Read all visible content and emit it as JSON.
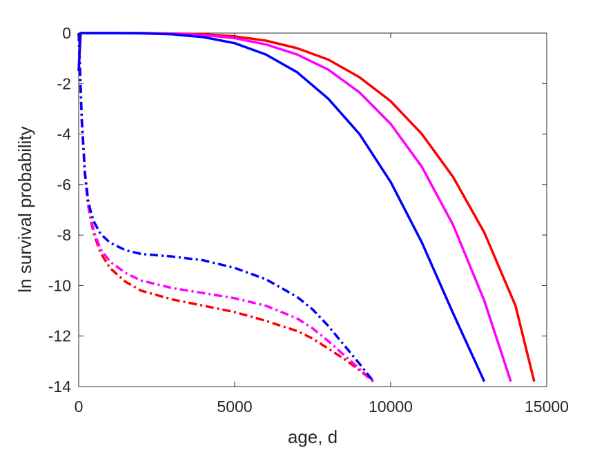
{
  "chart_data": {
    "type": "line",
    "title": "",
    "xlabel": "age, d",
    "ylabel": "ln survival probability",
    "xlim": [
      0,
      15000
    ],
    "ylim": [
      -14,
      0
    ],
    "xticks": [
      0,
      5000,
      10000,
      15000
    ],
    "xtick_labels": [
      "0",
      "5000",
      "10000",
      "15000"
    ],
    "yticks": [
      0,
      -2,
      -4,
      -6,
      -8,
      -10,
      -12,
      -14
    ],
    "ytick_labels": [
      "0",
      "-2",
      "-4",
      "-6",
      "-8",
      "-10",
      "-12",
      "-14"
    ],
    "grid": false,
    "legend": "none",
    "series": [
      {
        "color": "#ff0000",
        "style": "solid",
        "x": [
          0,
          60,
          1000,
          2000,
          3000,
          4000,
          5000,
          6000,
          7000,
          8000,
          9000,
          10000,
          11000,
          12000,
          13000,
          14000,
          14600
        ],
        "y": [
          -1.5,
          0,
          0,
          0,
          -0.02,
          -0.05,
          -0.13,
          -0.3,
          -0.6,
          -1.05,
          -1.75,
          -2.7,
          -4.0,
          -5.7,
          -7.9,
          -10.8,
          -13.8
        ]
      },
      {
        "color": "#ff00ff",
        "style": "solid",
        "x": [
          0,
          60,
          1000,
          2000,
          3000,
          4000,
          5000,
          6000,
          7000,
          8000,
          9000,
          10000,
          11000,
          12000,
          13000,
          13850
        ],
        "y": [
          -1.5,
          0,
          0,
          0,
          -0.03,
          -0.08,
          -0.2,
          -0.45,
          -0.85,
          -1.45,
          -2.35,
          -3.6,
          -5.3,
          -7.6,
          -10.6,
          -13.8
        ]
      },
      {
        "color": "#0000ff",
        "style": "solid",
        "x": [
          0,
          60,
          1000,
          2000,
          3000,
          4000,
          5000,
          6000,
          7000,
          8000,
          9000,
          10000,
          11000,
          12000,
          13000
        ],
        "y": [
          -1.5,
          0,
          0,
          -0.01,
          -0.05,
          -0.16,
          -0.4,
          -0.85,
          -1.55,
          -2.6,
          -4.0,
          -5.9,
          -8.3,
          -11.1,
          -13.8
        ]
      },
      {
        "color": "#ff0000",
        "style": "dashdot",
        "x": [
          0,
          100,
          200,
          300,
          400,
          500,
          700,
          1000,
          1500,
          2000,
          3000,
          4000,
          5000,
          6000,
          7000,
          7500,
          8000,
          8500,
          9000,
          9450
        ],
        "y": [
          0,
          -3.5,
          -5.6,
          -6.8,
          -7.5,
          -8.0,
          -8.7,
          -9.3,
          -9.85,
          -10.2,
          -10.55,
          -10.8,
          -11.05,
          -11.4,
          -11.8,
          -12.1,
          -12.5,
          -12.9,
          -13.35,
          -13.8
        ]
      },
      {
        "color": "#ff00ff",
        "style": "dashdot",
        "x": [
          0,
          100,
          200,
          300,
          400,
          500,
          700,
          1000,
          1500,
          2000,
          3000,
          4000,
          5000,
          6000,
          7000,
          7500,
          8000,
          8500,
          9000,
          9450
        ],
        "y": [
          0,
          -3.5,
          -5.6,
          -6.8,
          -7.4,
          -7.9,
          -8.55,
          -9.05,
          -9.5,
          -9.8,
          -10.1,
          -10.3,
          -10.5,
          -10.8,
          -11.3,
          -11.7,
          -12.2,
          -12.75,
          -13.3,
          -13.8
        ]
      },
      {
        "color": "#0000ff",
        "style": "dashdot",
        "x": [
          0,
          100,
          200,
          300,
          400,
          500,
          700,
          1000,
          1500,
          2000,
          3000,
          4000,
          5000,
          6000,
          7000,
          7500,
          8000,
          8500,
          9000,
          9450
        ],
        "y": [
          0,
          -3.4,
          -5.5,
          -6.6,
          -7.15,
          -7.5,
          -7.95,
          -8.3,
          -8.6,
          -8.75,
          -8.85,
          -9.0,
          -9.3,
          -9.75,
          -10.45,
          -10.95,
          -11.6,
          -12.35,
          -13.1,
          -13.8
        ]
      }
    ]
  }
}
